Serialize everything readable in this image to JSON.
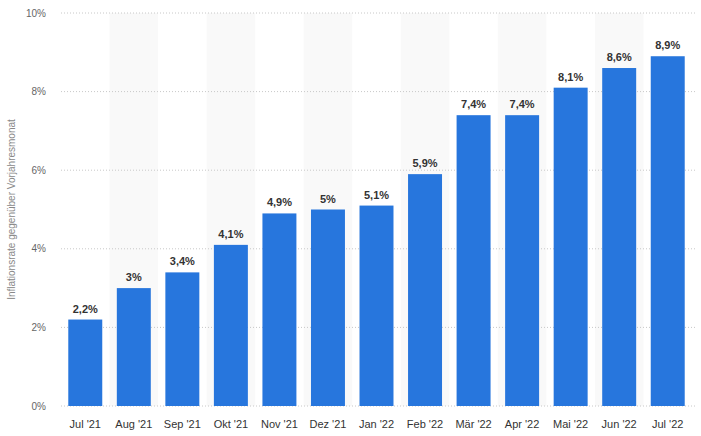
{
  "chart_data": {
    "type": "bar",
    "y_label": "Inflationsrate gegenüber Vorjahresmonat",
    "categories": [
      "Jul '21",
      "Aug '21",
      "Sep '21",
      "Okt '21",
      "Nov '21",
      "Dez '21",
      "Jan '22",
      "Feb '22",
      "Mär '22",
      "Apr '22",
      "Mai '22",
      "Jun '22",
      "Jul '22"
    ],
    "values": [
      2.2,
      3,
      3.4,
      4.1,
      4.9,
      5,
      5.1,
      5.9,
      7.4,
      7.4,
      8.1,
      8.6,
      8.9
    ],
    "value_labels": [
      "2,2%",
      "3%",
      "3,4%",
      "4,1%",
      "4,9%",
      "5%",
      "5,1%",
      "5,9%",
      "7,4%",
      "7,4%",
      "8,1%",
      "8,6%",
      "8,9%"
    ],
    "color": "#2776dd",
    "ylim": [
      0,
      10
    ],
    "yticks": [
      {
        "value": 0,
        "label": "0%"
      },
      {
        "value": 2,
        "label": "2%"
      },
      {
        "value": 4,
        "label": "4%"
      },
      {
        "value": 6,
        "label": "6%"
      },
      {
        "value": 8,
        "label": "8%"
      },
      {
        "value": 10,
        "label": "10%"
      }
    ],
    "grid": true,
    "data_labels": true
  }
}
